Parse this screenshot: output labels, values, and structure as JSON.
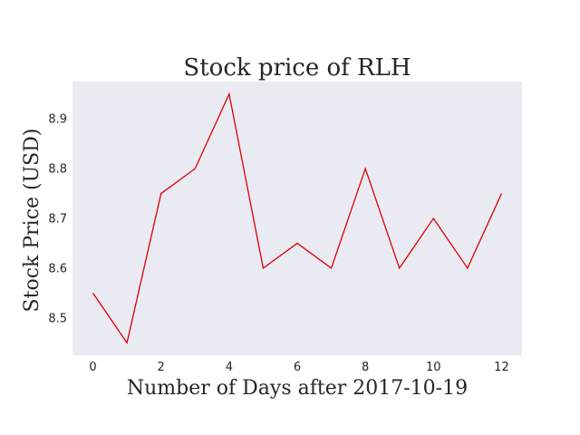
{
  "chart_data": {
    "type": "line",
    "title": "Stock price of RLH",
    "xlabel": "Number of Days after 2017-10-19",
    "ylabel": "Stock Price (USD)",
    "x": [
      0,
      1,
      2,
      3,
      4,
      5,
      6,
      7,
      8,
      9,
      10,
      11,
      12
    ],
    "series": [
      {
        "values": [
          8.55,
          8.45,
          8.75,
          8.8,
          8.95,
          8.6,
          8.65,
          8.6,
          8.8,
          8.6,
          8.7,
          8.6,
          8.75
        ]
      }
    ],
    "xlim": [
      -0.6,
      12.6
    ],
    "ylim": [
      8.425,
      8.975
    ],
    "xticks": [
      0,
      2,
      4,
      6,
      8,
      10,
      12
    ],
    "xtick_labels": [
      "0",
      "2",
      "4",
      "6",
      "8",
      "10",
      "12"
    ],
    "yticks": [
      8.5,
      8.6,
      8.7,
      8.8,
      8.9
    ],
    "ytick_labels": [
      "8.5",
      "8.6",
      "8.7",
      "8.8",
      "8.9"
    ],
    "grid": false,
    "colors": {
      "line": "#dd0000",
      "plot_background": "#eaeaf2"
    }
  }
}
